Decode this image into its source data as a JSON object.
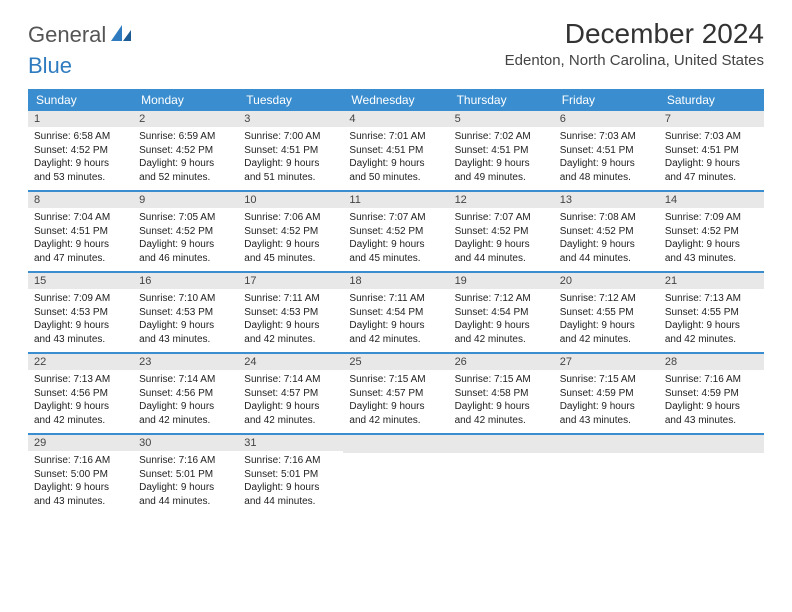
{
  "logo": {
    "word1": "General",
    "word2": "Blue"
  },
  "title": "December 2024",
  "location": "Edenton, North Carolina, United States",
  "colors": {
    "header_bg": "#3a8dce",
    "header_text": "#ffffff",
    "daynum_bg": "#e8e8e8",
    "week_divider": "#3a8dce",
    "logo_gray": "#555555",
    "logo_blue": "#2f7bbf"
  },
  "day_headers": [
    "Sunday",
    "Monday",
    "Tuesday",
    "Wednesday",
    "Thursday",
    "Friday",
    "Saturday"
  ],
  "weeks": [
    [
      {
        "n": "1",
        "sr": "Sunrise: 6:58 AM",
        "ss": "Sunset: 4:52 PM",
        "dl1": "Daylight: 9 hours",
        "dl2": "and 53 minutes."
      },
      {
        "n": "2",
        "sr": "Sunrise: 6:59 AM",
        "ss": "Sunset: 4:52 PM",
        "dl1": "Daylight: 9 hours",
        "dl2": "and 52 minutes."
      },
      {
        "n": "3",
        "sr": "Sunrise: 7:00 AM",
        "ss": "Sunset: 4:51 PM",
        "dl1": "Daylight: 9 hours",
        "dl2": "and 51 minutes."
      },
      {
        "n": "4",
        "sr": "Sunrise: 7:01 AM",
        "ss": "Sunset: 4:51 PM",
        "dl1": "Daylight: 9 hours",
        "dl2": "and 50 minutes."
      },
      {
        "n": "5",
        "sr": "Sunrise: 7:02 AM",
        "ss": "Sunset: 4:51 PM",
        "dl1": "Daylight: 9 hours",
        "dl2": "and 49 minutes."
      },
      {
        "n": "6",
        "sr": "Sunrise: 7:03 AM",
        "ss": "Sunset: 4:51 PM",
        "dl1": "Daylight: 9 hours",
        "dl2": "and 48 minutes."
      },
      {
        "n": "7",
        "sr": "Sunrise: 7:03 AM",
        "ss": "Sunset: 4:51 PM",
        "dl1": "Daylight: 9 hours",
        "dl2": "and 47 minutes."
      }
    ],
    [
      {
        "n": "8",
        "sr": "Sunrise: 7:04 AM",
        "ss": "Sunset: 4:51 PM",
        "dl1": "Daylight: 9 hours",
        "dl2": "and 47 minutes."
      },
      {
        "n": "9",
        "sr": "Sunrise: 7:05 AM",
        "ss": "Sunset: 4:52 PM",
        "dl1": "Daylight: 9 hours",
        "dl2": "and 46 minutes."
      },
      {
        "n": "10",
        "sr": "Sunrise: 7:06 AM",
        "ss": "Sunset: 4:52 PM",
        "dl1": "Daylight: 9 hours",
        "dl2": "and 45 minutes."
      },
      {
        "n": "11",
        "sr": "Sunrise: 7:07 AM",
        "ss": "Sunset: 4:52 PM",
        "dl1": "Daylight: 9 hours",
        "dl2": "and 45 minutes."
      },
      {
        "n": "12",
        "sr": "Sunrise: 7:07 AM",
        "ss": "Sunset: 4:52 PM",
        "dl1": "Daylight: 9 hours",
        "dl2": "and 44 minutes."
      },
      {
        "n": "13",
        "sr": "Sunrise: 7:08 AM",
        "ss": "Sunset: 4:52 PM",
        "dl1": "Daylight: 9 hours",
        "dl2": "and 44 minutes."
      },
      {
        "n": "14",
        "sr": "Sunrise: 7:09 AM",
        "ss": "Sunset: 4:52 PM",
        "dl1": "Daylight: 9 hours",
        "dl2": "and 43 minutes."
      }
    ],
    [
      {
        "n": "15",
        "sr": "Sunrise: 7:09 AM",
        "ss": "Sunset: 4:53 PM",
        "dl1": "Daylight: 9 hours",
        "dl2": "and 43 minutes."
      },
      {
        "n": "16",
        "sr": "Sunrise: 7:10 AM",
        "ss": "Sunset: 4:53 PM",
        "dl1": "Daylight: 9 hours",
        "dl2": "and 43 minutes."
      },
      {
        "n": "17",
        "sr": "Sunrise: 7:11 AM",
        "ss": "Sunset: 4:53 PM",
        "dl1": "Daylight: 9 hours",
        "dl2": "and 42 minutes."
      },
      {
        "n": "18",
        "sr": "Sunrise: 7:11 AM",
        "ss": "Sunset: 4:54 PM",
        "dl1": "Daylight: 9 hours",
        "dl2": "and 42 minutes."
      },
      {
        "n": "19",
        "sr": "Sunrise: 7:12 AM",
        "ss": "Sunset: 4:54 PM",
        "dl1": "Daylight: 9 hours",
        "dl2": "and 42 minutes."
      },
      {
        "n": "20",
        "sr": "Sunrise: 7:12 AM",
        "ss": "Sunset: 4:55 PM",
        "dl1": "Daylight: 9 hours",
        "dl2": "and 42 minutes."
      },
      {
        "n": "21",
        "sr": "Sunrise: 7:13 AM",
        "ss": "Sunset: 4:55 PM",
        "dl1": "Daylight: 9 hours",
        "dl2": "and 42 minutes."
      }
    ],
    [
      {
        "n": "22",
        "sr": "Sunrise: 7:13 AM",
        "ss": "Sunset: 4:56 PM",
        "dl1": "Daylight: 9 hours",
        "dl2": "and 42 minutes."
      },
      {
        "n": "23",
        "sr": "Sunrise: 7:14 AM",
        "ss": "Sunset: 4:56 PM",
        "dl1": "Daylight: 9 hours",
        "dl2": "and 42 minutes."
      },
      {
        "n": "24",
        "sr": "Sunrise: 7:14 AM",
        "ss": "Sunset: 4:57 PM",
        "dl1": "Daylight: 9 hours",
        "dl2": "and 42 minutes."
      },
      {
        "n": "25",
        "sr": "Sunrise: 7:15 AM",
        "ss": "Sunset: 4:57 PM",
        "dl1": "Daylight: 9 hours",
        "dl2": "and 42 minutes."
      },
      {
        "n": "26",
        "sr": "Sunrise: 7:15 AM",
        "ss": "Sunset: 4:58 PM",
        "dl1": "Daylight: 9 hours",
        "dl2": "and 42 minutes."
      },
      {
        "n": "27",
        "sr": "Sunrise: 7:15 AM",
        "ss": "Sunset: 4:59 PM",
        "dl1": "Daylight: 9 hours",
        "dl2": "and 43 minutes."
      },
      {
        "n": "28",
        "sr": "Sunrise: 7:16 AM",
        "ss": "Sunset: 4:59 PM",
        "dl1": "Daylight: 9 hours",
        "dl2": "and 43 minutes."
      }
    ],
    [
      {
        "n": "29",
        "sr": "Sunrise: 7:16 AM",
        "ss": "Sunset: 5:00 PM",
        "dl1": "Daylight: 9 hours",
        "dl2": "and 43 minutes."
      },
      {
        "n": "30",
        "sr": "Sunrise: 7:16 AM",
        "ss": "Sunset: 5:01 PM",
        "dl1": "Daylight: 9 hours",
        "dl2": "and 44 minutes."
      },
      {
        "n": "31",
        "sr": "Sunrise: 7:16 AM",
        "ss": "Sunset: 5:01 PM",
        "dl1": "Daylight: 9 hours",
        "dl2": "and 44 minutes."
      },
      {
        "empty": true
      },
      {
        "empty": true
      },
      {
        "empty": true
      },
      {
        "empty": true
      }
    ]
  ]
}
